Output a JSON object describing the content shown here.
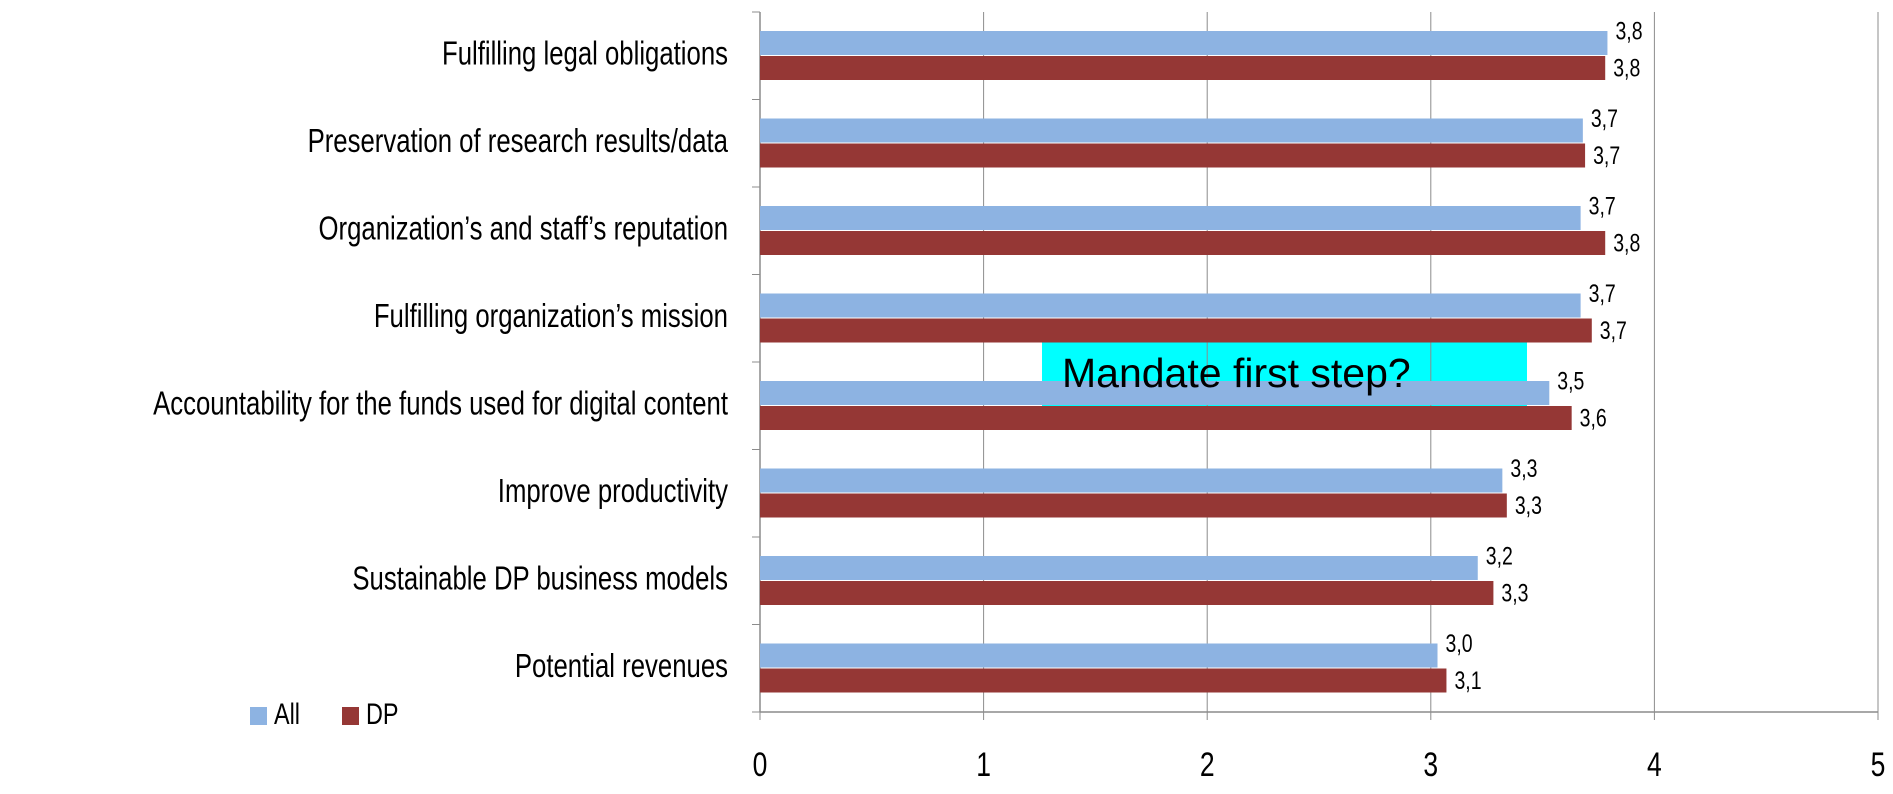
{
  "chart_data": {
    "type": "hbar",
    "categories": [
      "Fulfilling legal obligations",
      "Preservation of research results/data",
      "Organization’s and staff’s reputation",
      "Fulfilling organization’s mission",
      "Accountability for the funds used for digital content",
      "Improve productivity",
      "Sustainable DP business models",
      "Potential revenues"
    ],
    "series": [
      {
        "name": "All",
        "color": "#8db3e2",
        "values": [
          3.79,
          3.68,
          3.67,
          3.67,
          3.53,
          3.32,
          3.21,
          3.03
        ],
        "value_labels": [
          "3,8",
          "3,7",
          "3,7",
          "3,7",
          "3,5",
          "3,3",
          "3,2",
          "3,0"
        ]
      },
      {
        "name": "DP",
        "color": "#953735",
        "values": [
          3.78,
          3.69,
          3.78,
          3.72,
          3.63,
          3.34,
          3.28,
          3.07
        ],
        "value_labels": [
          "3,8",
          "3,7",
          "3,8",
          "3,7",
          "3,6",
          "3,3",
          "3,3",
          "3,1"
        ]
      }
    ],
    "xlim": [
      0,
      5
    ],
    "xticks": [
      0,
      1,
      2,
      3,
      4,
      5
    ],
    "grid": true,
    "legend": "bottom-left",
    "annotation": "Mandate first step?"
  }
}
